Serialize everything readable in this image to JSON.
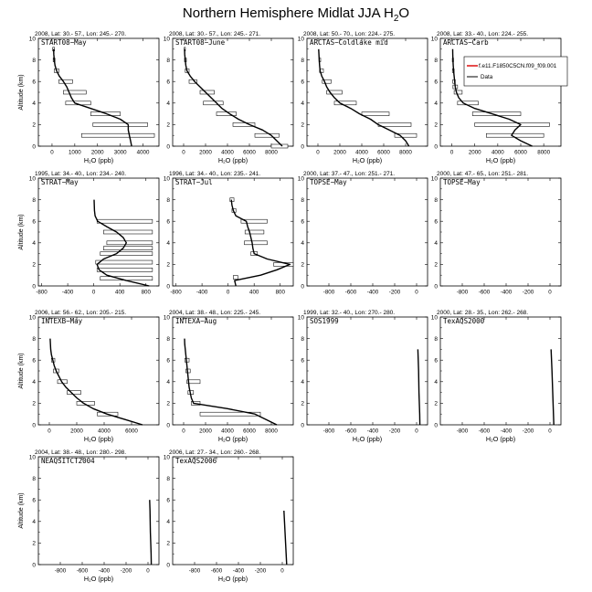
{
  "figure": {
    "title_main": "Northern Hemisphere Midlat JJA H",
    "title_sub": "2",
    "title_end": "O"
  },
  "chart_data": [
    {
      "type": "line",
      "header": "2008, Lat: 30.- 57., Lon: 245.- 270.",
      "title": "START08−May",
      "xlabel": "H₂O (ppb)",
      "ylabel": "Altitude (km)",
      "xlim": [
        -600,
        4700
      ],
      "ylim": [
        0,
        10
      ],
      "xticks": [
        "0",
        "1000",
        "2000",
        "3000",
        "4000"
      ],
      "xtick_values": [
        0,
        1000,
        2000,
        3000,
        4000
      ],
      "yticks": [
        "0",
        "2",
        "4",
        "6",
        "8",
        "10"
      ],
      "model": {
        "y": [
          0,
          0.5,
          1,
          1.5,
          2,
          2.5,
          3,
          3.5,
          4,
          4.5,
          5,
          5.5,
          6,
          6.5,
          7,
          7.5,
          8,
          8.5,
          9
        ],
        "x": [
          3500,
          3450,
          3400,
          3350,
          3350,
          3000,
          2400,
          1700,
          1000,
          850,
          750,
          650,
          500,
          320,
          200,
          130,
          100,
          80,
          70
        ]
      },
      "data_bars": [
        {
          "y": 2,
          "min": 1800,
          "max": 4200
        },
        {
          "y": 1,
          "min": 1300,
          "max": 4500
        },
        {
          "y": 3,
          "min": 1700,
          "max": 3000
        },
        {
          "y": 4,
          "min": 600,
          "max": 1700
        },
        {
          "y": 5,
          "min": 500,
          "max": 1500
        },
        {
          "y": 6,
          "min": 300,
          "max": 900
        },
        {
          "y": 7,
          "min": 100,
          "max": 300
        },
        {
          "y": 8,
          "min": 50,
          "max": 130
        },
        {
          "y": 9,
          "min": 30,
          "max": 110
        }
      ]
    },
    {
      "type": "line",
      "header": "2008, Lat: 30.- 57., Lon: 245.- 271.",
      "title": "START08−June",
      "xlabel": "H₂O (ppb)",
      "ylabel": "",
      "xlim": [
        -1000,
        10000
      ],
      "ylim": [
        0,
        10
      ],
      "xticks": [
        "0",
        "2000",
        "4000",
        "6000",
        "8000"
      ],
      "xtick_values": [
        0,
        2000,
        4000,
        6000,
        8000
      ],
      "yticks": [
        "0",
        "2",
        "4",
        "6",
        "8",
        "10"
      ],
      "model": {
        "y": [
          0,
          0.5,
          1,
          1.5,
          2,
          2.5,
          3,
          3.5,
          4,
          4.5,
          5,
          5.5,
          6,
          6.5,
          7,
          7.5,
          8,
          8.5,
          9
        ],
        "x": [
          9000,
          8500,
          8000,
          7200,
          6000,
          5000,
          4200,
          3500,
          3000,
          2500,
          2000,
          1500,
          1000,
          600,
          300,
          200,
          150,
          100,
          80
        ]
      },
      "data_bars": [
        {
          "y": 0,
          "min": 8000,
          "max": 9500
        },
        {
          "y": 1,
          "min": 6500,
          "max": 8700
        },
        {
          "y": 2,
          "min": 4500,
          "max": 6500
        },
        {
          "y": 3,
          "min": 3000,
          "max": 4800
        },
        {
          "y": 4,
          "min": 1800,
          "max": 3600
        },
        {
          "y": 5,
          "min": 1500,
          "max": 2800
        },
        {
          "y": 6,
          "min": 500,
          "max": 1200
        },
        {
          "y": 7,
          "min": 150,
          "max": 500
        },
        {
          "y": 8,
          "min": 80,
          "max": 250
        },
        {
          "y": 9,
          "min": 60,
          "max": 150
        }
      ]
    },
    {
      "type": "line",
      "header": "2008, Lat: 50.- 70., Lon: 224.- 275.",
      "title": "ARCTAS−Coldlake mid",
      "xlabel": "H₂O (ppb)",
      "ylabel": "",
      "xlim": [
        -1000,
        10000
      ],
      "ylim": [
        0,
        10
      ],
      "xticks": [
        "0",
        "2000",
        "4000",
        "6000",
        "8000"
      ],
      "xtick_values": [
        0,
        2000,
        4000,
        6000,
        8000
      ],
      "yticks": [
        "0",
        "2",
        "4",
        "6",
        "8",
        "10"
      ],
      "model": {
        "y": [
          0,
          0.5,
          1,
          1.5,
          2,
          2.5,
          3,
          3.5,
          4,
          4.5,
          5,
          5.5,
          6,
          6.5,
          7,
          7.5,
          8,
          8.5,
          9
        ],
        "x": [
          8300,
          8000,
          7500,
          6500,
          5500,
          4800,
          3800,
          3000,
          2000,
          1500,
          1100,
          800,
          600,
          350,
          200,
          150,
          120,
          90,
          70
        ]
      },
      "data_bars": [
        {
          "y": 1,
          "min": 7000,
          "max": 9000
        },
        {
          "y": 2,
          "min": 5500,
          "max": 8500
        },
        {
          "y": 3,
          "min": 4000,
          "max": 6500
        },
        {
          "y": 4,
          "min": 1500,
          "max": 3500
        },
        {
          "y": 5,
          "min": 800,
          "max": 2200
        },
        {
          "y": 6,
          "min": 400,
          "max": 1200
        },
        {
          "y": 7,
          "min": 150,
          "max": 500
        },
        {
          "y": 8,
          "min": 100,
          "max": 250
        }
      ]
    },
    {
      "type": "line",
      "header": "2008, Lat: 33.- 40., Lon: 224.- 255.",
      "title": "ARCTAS−Carb",
      "xlabel": "H₂O (ppb)",
      "ylabel": "",
      "xlim": [
        -1000,
        9500
      ],
      "ylim": [
        0,
        10
      ],
      "xticks": [
        "0",
        "2000",
        "4000",
        "6000",
        "8000"
      ],
      "xtick_values": [
        0,
        2000,
        4000,
        6000,
        8000
      ],
      "yticks": [
        "0",
        "2",
        "4",
        "6",
        "8",
        "10"
      ],
      "model": {
        "y": [
          0,
          0.5,
          1,
          1.5,
          2,
          2.5,
          3,
          3.5,
          4,
          4.5,
          5,
          5.5,
          6,
          6.5,
          7,
          7.5,
          8,
          8.5,
          9
        ],
        "x": [
          7000,
          6000,
          5200,
          5500,
          6000,
          5000,
          3500,
          2000,
          1000,
          600,
          400,
          300,
          250,
          200,
          150,
          120,
          100,
          80,
          70
        ]
      },
      "data_bars": [
        {
          "y": 1,
          "min": 3000,
          "max": 8000
        },
        {
          "y": 2,
          "min": 2000,
          "max": 8500
        },
        {
          "y": 3,
          "min": 1800,
          "max": 6000
        },
        {
          "y": 4,
          "min": 500,
          "max": 2300
        },
        {
          "y": 5,
          "min": 200,
          "max": 900
        },
        {
          "y": 5.5,
          "min": 100,
          "max": 500
        },
        {
          "y": 6,
          "min": 80,
          "max": 300
        },
        {
          "y": 7,
          "min": 50,
          "max": 200
        },
        {
          "y": 8,
          "min": 40,
          "max": 150
        }
      ],
      "legend": {
        "model_label": "f.e11.F1850C5CN.f09_f09.001",
        "data_label": "Data",
        "position": "top-right"
      }
    },
    {
      "type": "line",
      "header": "1995, Lat: 34.- 40., Lon: 234.- 240.",
      "title": "STRAT−May",
      "xlabel": "",
      "ylabel": "Altitude (km)",
      "xlim": [
        -850,
        1000
      ],
      "ylim": [
        0,
        10
      ],
      "xticks": [
        "-800",
        "-400",
        "0",
        "400",
        "800"
      ],
      "xtick_values": [
        -800,
        -400,
        0,
        400,
        800
      ],
      "yticks": [
        "0",
        "2",
        "4",
        "6",
        "8",
        "10"
      ],
      "model": {
        "y": [
          0,
          0.5,
          1,
          1.5,
          2,
          2.5,
          3,
          3.5,
          4,
          4.5,
          5,
          5.5,
          6,
          6.5,
          7,
          7.5,
          8
        ],
        "x": [
          850,
          500,
          200,
          80,
          50,
          150,
          350,
          450,
          500,
          450,
          350,
          200,
          60,
          20,
          10,
          8,
          5
        ]
      },
      "data_bars": [
        {
          "y": 0.7,
          "min": 100,
          "max": 900
        },
        {
          "y": 1.5,
          "min": 50,
          "max": 900
        },
        {
          "y": 2.2,
          "min": 30,
          "max": 900
        },
        {
          "y": 3,
          "min": 100,
          "max": 900
        },
        {
          "y": 3.5,
          "min": 150,
          "max": 900
        },
        {
          "y": 4,
          "min": 200,
          "max": 900
        },
        {
          "y": 5,
          "min": 150,
          "max": 900
        },
        {
          "y": 6,
          "min": 50,
          "max": 900
        }
      ]
    },
    {
      "type": "line",
      "header": "1996, Lat: 34.- 40., Lon: 235.- 241.",
      "title": "STRAT−Jul",
      "xlabel": "",
      "ylabel": "",
      "xlim": [
        -850,
        1000
      ],
      "ylim": [
        0,
        10
      ],
      "xticks": [
        "-800",
        "-400",
        "0",
        "400",
        "800"
      ],
      "xtick_values": [
        -800,
        -400,
        0,
        400,
        800
      ],
      "yticks": [
        "0",
        "2",
        "4",
        "6",
        "8",
        "10"
      ],
      "model": {
        "y": [
          0,
          0.5,
          1,
          1.5,
          2,
          2.5,
          3,
          3.5,
          4,
          4.5,
          5,
          5.5,
          6,
          6.5,
          7,
          7.5,
          8
        ],
        "x": [
          120,
          100,
          500,
          750,
          950,
          600,
          400,
          380,
          370,
          350,
          330,
          300,
          280,
          120,
          80,
          60,
          50
        ]
      },
      "data_bars": [
        {
          "y": 0.8,
          "min": 80,
          "max": 150
        },
        {
          "y": 2,
          "min": 700,
          "max": 1000
        },
        {
          "y": 3,
          "min": 350,
          "max": 450
        },
        {
          "y": 4,
          "min": 250,
          "max": 600
        },
        {
          "y": 5,
          "min": 260,
          "max": 550
        },
        {
          "y": 6,
          "min": 200,
          "max": 600
        },
        {
          "y": 7,
          "min": 60,
          "max": 120
        },
        {
          "y": 8,
          "min": 30,
          "max": 90
        }
      ]
    },
    {
      "type": "line",
      "header": "2000, Lat: 37.- 47., Lon: 251.- 271.",
      "title": "TOPSE−May",
      "xlabel": "",
      "ylabel": "",
      "xlim": [
        -1000,
        100
      ],
      "ylim": [
        0,
        10
      ],
      "xticks": [
        "-800",
        "-600",
        "-400",
        "-200",
        "0"
      ],
      "xtick_values": [
        -800,
        -600,
        -400,
        -200,
        0
      ],
      "yticks": [
        "0",
        "2",
        "4",
        "6",
        "8",
        "10"
      ],
      "model": {
        "y": [],
        "x": []
      },
      "data_bars": []
    },
    {
      "type": "line",
      "header": "2000, Lat: 47.- 65., Lon: 251.- 281.",
      "title": "TOPSE−May",
      "xlabel": "",
      "ylabel": "",
      "xlim": [
        -1000,
        100
      ],
      "ylim": [
        0,
        10
      ],
      "xticks": [
        "-800",
        "-600",
        "-400",
        "-200",
        "0"
      ],
      "xtick_values": [
        -800,
        -600,
        -400,
        -200,
        0
      ],
      "yticks": [
        "0",
        "2",
        "4",
        "6",
        "8",
        "10"
      ],
      "model": {
        "y": [],
        "x": []
      },
      "data_bars": []
    },
    {
      "type": "line",
      "header": "2006, Lat: 56.- 62., Lon: 205.- 215.",
      "title": "INTEXB−May",
      "xlabel": "H₂O (ppb)",
      "ylabel": "Altitude (km)",
      "xlim": [
        -800,
        8000
      ],
      "ylim": [
        0,
        10
      ],
      "xticks": [
        "0",
        "2000",
        "4000",
        "6000"
      ],
      "xtick_values": [
        0,
        2000,
        4000,
        6000
      ],
      "yticks": [
        "0",
        "2",
        "4",
        "6",
        "8",
        "10"
      ],
      "model": {
        "y": [
          0,
          0.5,
          1,
          1.5,
          2,
          2.5,
          3,
          3.5,
          4,
          4.5,
          5,
          5.5,
          6,
          6.5,
          7,
          7.5,
          8
        ],
        "x": [
          6800,
          5500,
          4200,
          3200,
          2500,
          2000,
          1600,
          1200,
          900,
          700,
          500,
          350,
          250,
          150,
          100,
          80,
          60
        ]
      },
      "data_bars": [
        {
          "y": 1,
          "min": 3500,
          "max": 5000
        },
        {
          "y": 2,
          "min": 2000,
          "max": 3300
        },
        {
          "y": 3,
          "min": 1300,
          "max": 2300
        },
        {
          "y": 4,
          "min": 600,
          "max": 1300
        },
        {
          "y": 5,
          "min": 300,
          "max": 700
        },
        {
          "y": 6,
          "min": 150,
          "max": 400
        }
      ]
    },
    {
      "type": "line",
      "header": "2004, Lat: 38.- 48., Lon: 225.- 245.",
      "title": "INTEXA−Aug",
      "xlabel": "H₂O (ppb)",
      "ylabel": "",
      "xlim": [
        -1000,
        10000
      ],
      "ylim": [
        0,
        10
      ],
      "xticks": [
        "0",
        "2000",
        "4000",
        "6000",
        "8000"
      ],
      "xtick_values": [
        0,
        2000,
        4000,
        6000,
        8000
      ],
      "yticks": [
        "0",
        "2",
        "4",
        "6",
        "8",
        "10"
      ],
      "model": {
        "y": [
          0,
          0.5,
          1,
          1.5,
          2,
          2.5,
          3,
          3.5,
          4,
          4.5,
          5,
          5.5,
          6,
          6.5,
          7,
          7.5,
          8
        ],
        "x": [
          8500,
          7500,
          6500,
          4000,
          900,
          700,
          600,
          500,
          450,
          400,
          350,
          300,
          250,
          200,
          150,
          100,
          80
        ]
      },
      "data_bars": [
        {
          "y": 1,
          "min": 1500,
          "max": 7000
        },
        {
          "y": 2,
          "min": 700,
          "max": 1500
        },
        {
          "y": 3,
          "min": 400,
          "max": 900
        },
        {
          "y": 4,
          "min": 300,
          "max": 1500
        },
        {
          "y": 5,
          "min": 200,
          "max": 600
        },
        {
          "y": 6,
          "min": 100,
          "max": 500
        }
      ]
    },
    {
      "type": "line",
      "header": "1999, Lat: 32.- 40., Lon: 270.- 280.",
      "title": "SOS1999",
      "xlabel": "H₂O (ppb)",
      "ylabel": "",
      "xlim": [
        -1000,
        100
      ],
      "ylim": [
        0,
        10
      ],
      "xticks": [
        "-800",
        "-600",
        "-400",
        "-200",
        "0"
      ],
      "xtick_values": [
        -800,
        -600,
        -400,
        -200,
        0
      ],
      "yticks": [
        "0",
        "2",
        "4",
        "6",
        "8",
        "10"
      ],
      "model": {
        "y": [
          0,
          1,
          2,
          3,
          4,
          5,
          6,
          7
        ],
        "x": [
          30,
          28,
          25,
          22,
          20,
          18,
          15,
          12
        ]
      },
      "data_bars": []
    },
    {
      "type": "line",
      "header": "2000, Lat: 28.- 35., Lon: 262.- 268.",
      "title": "TexAQS2000",
      "xlabel": "H₂O (ppb)",
      "ylabel": "",
      "xlim": [
        -1000,
        100
      ],
      "ylim": [
        0,
        10
      ],
      "xticks": [
        "-800",
        "-600",
        "-400",
        "-200",
        "0"
      ],
      "xtick_values": [
        -800,
        -600,
        -400,
        -200,
        0
      ],
      "yticks": [
        "0",
        "2",
        "4",
        "6",
        "8",
        "10"
      ],
      "model": {
        "y": [
          0,
          1,
          2,
          3,
          4,
          5,
          6,
          7
        ],
        "x": [
          35,
          32,
          28,
          25,
          22,
          18,
          14,
          10
        ]
      },
      "data_bars": []
    },
    {
      "type": "line",
      "header": "2004, Lat: 38.- 48., Lon: 280.- 298.",
      "title": "NEAQSITCT2004",
      "xlabel": "H₂O (ppb)",
      "ylabel": "Altitude (km)",
      "xlim": [
        -1000,
        100
      ],
      "ylim": [
        0,
        10
      ],
      "xticks": [
        "-800",
        "-600",
        "-400",
        "-200",
        "0"
      ],
      "xtick_values": [
        -800,
        -600,
        -400,
        -200,
        0
      ],
      "yticks": [
        "0",
        "2",
        "4",
        "6",
        "8",
        "10"
      ],
      "model": {
        "y": [
          0,
          1,
          2,
          3,
          4,
          5,
          6
        ],
        "x": [
          30,
          28,
          25,
          22,
          20,
          18,
          15
        ]
      },
      "data_bars": []
    },
    {
      "type": "line",
      "header": "2006, Lat: 27.- 34., Lon: 260.- 268.",
      "title": "TexAQS2006",
      "xlabel": "H₂O (ppb)",
      "ylabel": "",
      "xlim": [
        -1000,
        100
      ],
      "ylim": [
        0,
        10
      ],
      "xticks": [
        "-800",
        "-600",
        "-400",
        "-200",
        "0"
      ],
      "xtick_values": [
        -800,
        -600,
        -400,
        -200,
        0
      ],
      "yticks": [
        "0",
        "2",
        "4",
        "6",
        "8",
        "10"
      ],
      "model": {
        "y": [
          0,
          1,
          2,
          3,
          4,
          5
        ],
        "x": [
          40,
          35,
          30,
          25,
          20,
          15
        ]
      },
      "data_bars": []
    }
  ]
}
